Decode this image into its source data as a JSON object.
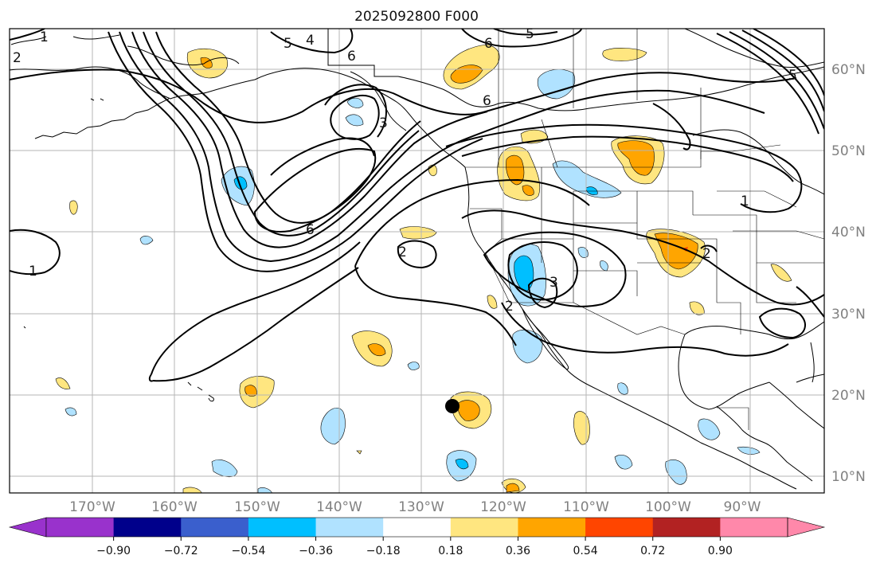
{
  "title": "2025092800 F000",
  "lon_labels": [
    "170°W",
    "160°W",
    "150°W",
    "140°W",
    "130°W",
    "120°W",
    "110°W",
    "100°W",
    "90°W"
  ],
  "lat_labels": [
    "60°N",
    "50°N",
    "40°N",
    "30°N",
    "20°N",
    "10°N"
  ],
  "contour_labels": [
    "1",
    "1",
    "2",
    "2",
    "2",
    "3",
    "3",
    "4",
    "5",
    "5",
    "6",
    "6",
    "6",
    "6",
    "1",
    "2",
    "5"
  ],
  "colorbar": {
    "ticks": [
      "−0.90",
      "−0.72",
      "−0.54",
      "−0.36",
      "−0.18",
      "0.18",
      "0.36",
      "0.54",
      "0.72",
      "0.90"
    ],
    "colors": [
      "#9932cc",
      "#00008b",
      "#3a5fcd",
      "#00bfff",
      "#b0e2ff",
      "#ffffff",
      "#ffe680",
      "#ffa500",
      "#ff4500",
      "#b22222",
      "#ff88aa",
      "#ff88aa"
    ]
  },
  "map_colors": {
    "light_orange": "#ffe680",
    "orange": "#ffa500",
    "red_orange": "#ff4500",
    "light_blue": "#b0e2ff",
    "cyan": "#00bfff"
  },
  "marker": "storm-center-dot"
}
